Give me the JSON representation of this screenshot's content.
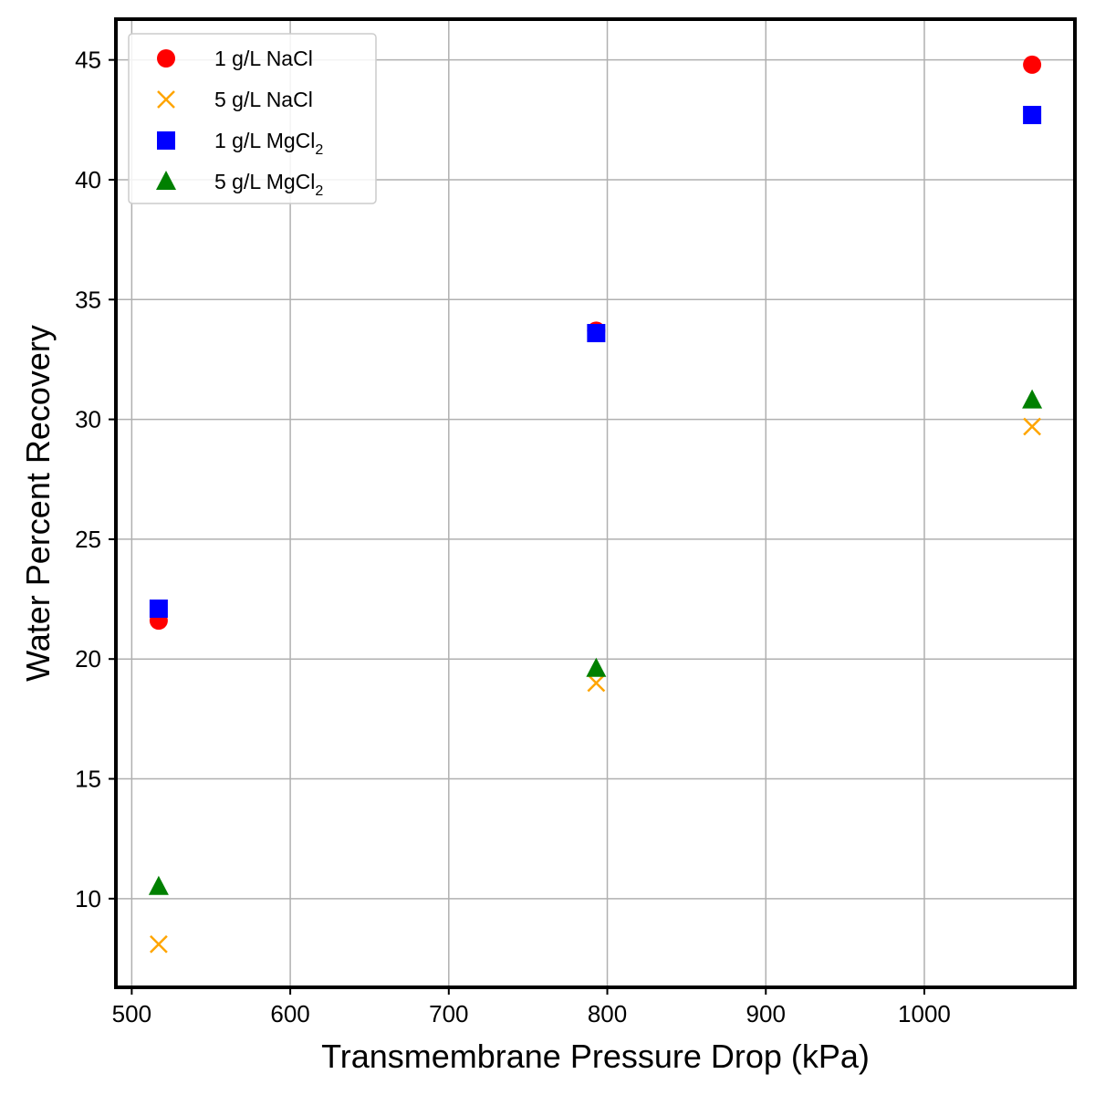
{
  "chart_data": {
    "type": "scatter",
    "title": "",
    "xlabel": "Transmembrane Pressure Drop (kPa)",
    "ylabel": "Water Percent Recovery",
    "xlim": [
      490,
      1095
    ],
    "ylim": [
      6.3,
      46.7
    ],
    "xticks": [
      500,
      600,
      700,
      800,
      900,
      1000
    ],
    "yticks": [
      10,
      15,
      20,
      25,
      30,
      35,
      40,
      45
    ],
    "grid": true,
    "legend_position": "top-left",
    "series": [
      {
        "name": "1 g/L NaCl",
        "legend_main": "1 g/L NaCl",
        "legend_sub": "",
        "marker": "circle",
        "color": "#ff0000",
        "x": [
          517,
          793,
          1068
        ],
        "y": [
          21.6,
          33.7,
          44.8
        ]
      },
      {
        "name": "5 g/L NaCl",
        "legend_main": "5 g/L NaCl",
        "legend_sub": "",
        "marker": "x",
        "color": "#ffa500",
        "x": [
          517,
          793,
          1068
        ],
        "y": [
          8.1,
          19.0,
          29.7
        ]
      },
      {
        "name": "1 g/L MgCl2",
        "legend_main": "1 g/L MgCl",
        "legend_sub": "2",
        "marker": "square",
        "color": "#0000ff",
        "x": [
          517,
          793,
          1068
        ],
        "y": [
          22.1,
          33.6,
          42.7
        ]
      },
      {
        "name": "5 g/L MgCl2",
        "legend_main": "5 g/L MgCl",
        "legend_sub": "2",
        "marker": "triangle",
        "color": "#008000",
        "x": [
          517,
          793,
          1068
        ],
        "y": [
          10.5,
          19.6,
          30.8
        ]
      }
    ]
  }
}
